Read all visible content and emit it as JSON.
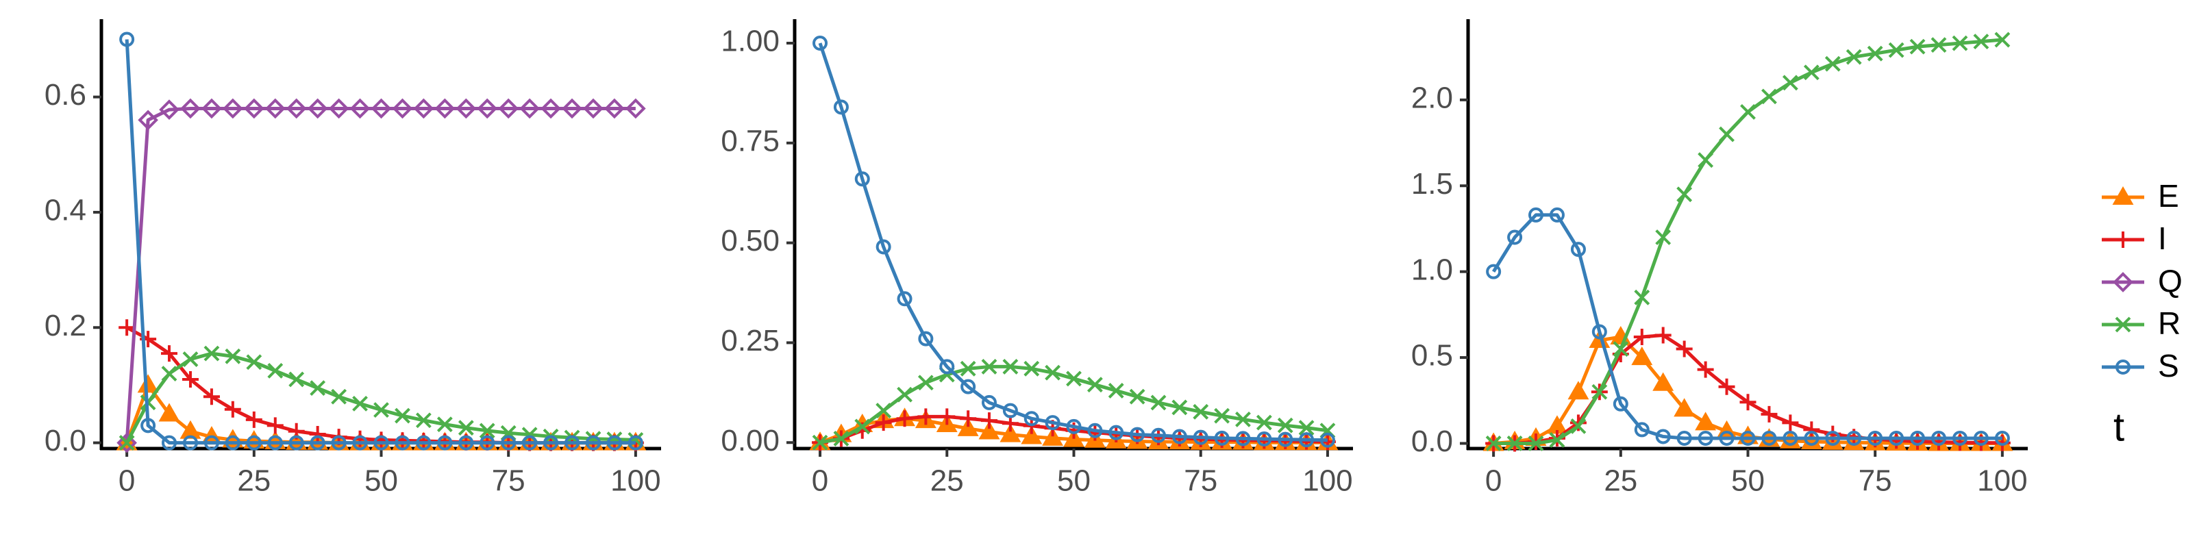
{
  "chart_data": [
    {
      "type": "line",
      "x": [
        0,
        4.17,
        8.33,
        12.5,
        16.67,
        20.83,
        25,
        29.17,
        33.33,
        37.5,
        41.67,
        45.83,
        50,
        54.17,
        58.33,
        62.5,
        66.67,
        70.83,
        75,
        79.17,
        83.33,
        87.5,
        91.67,
        95.83,
        100
      ],
      "xlim": [
        -5,
        105
      ],
      "xticks": [
        0,
        25,
        50,
        75,
        100
      ],
      "ylim": [
        -0.01,
        0.735
      ],
      "yticks": [
        {
          "value": 0,
          "label": "0.0"
        },
        0.2,
        0.4,
        0.6
      ],
      "series": [
        {
          "name": "E",
          "color": "#ff7f00",
          "marker": "triangle",
          "values": [
            0,
            0.1,
            0.05,
            0.02,
            0.01,
            0.005,
            0.003,
            0.002,
            0.001,
            0.001,
            0,
            0,
            0,
            0,
            0,
            0,
            0,
            0,
            0,
            0,
            0,
            0,
            0,
            0,
            0
          ]
        },
        {
          "name": "I",
          "color": "#e41a1c",
          "marker": "plus",
          "values": [
            0.2,
            0.18,
            0.155,
            0.11,
            0.08,
            0.058,
            0.04,
            0.03,
            0.02,
            0.015,
            0.01,
            0.007,
            0.005,
            0.004,
            0.003,
            0.002,
            0.001,
            0.001,
            0,
            0,
            0,
            0,
            0,
            0,
            0
          ]
        },
        {
          "name": "Q",
          "color": "#984ea3",
          "marker": "diamond",
          "values": [
            0,
            0.56,
            0.578,
            0.58,
            0.58,
            0.58,
            0.58,
            0.58,
            0.58,
            0.58,
            0.58,
            0.58,
            0.58,
            0.58,
            0.58,
            0.58,
            0.58,
            0.58,
            0.58,
            0.58,
            0.58,
            0.58,
            0.58,
            0.58,
            0.58
          ]
        },
        {
          "name": "R",
          "color": "#4daf4a",
          "marker": "cross",
          "values": [
            0,
            0.07,
            0.12,
            0.145,
            0.155,
            0.15,
            0.14,
            0.125,
            0.11,
            0.095,
            0.08,
            0.068,
            0.057,
            0.047,
            0.039,
            0.032,
            0.026,
            0.021,
            0.017,
            0.014,
            0.011,
            0.009,
            0.007,
            0.006,
            0.005
          ]
        },
        {
          "name": "S",
          "color": "#377eb8",
          "marker": "circle",
          "values": [
            0.7,
            0.03,
            0,
            0,
            0,
            0,
            0,
            0,
            0,
            0,
            0,
            0,
            0,
            0,
            0,
            0,
            0,
            0,
            0,
            0,
            0,
            0,
            0,
            0,
            0
          ]
        }
      ]
    },
    {
      "type": "line",
      "x": [
        0,
        4.17,
        8.33,
        12.5,
        16.67,
        20.83,
        25,
        29.17,
        33.33,
        37.5,
        41.67,
        45.83,
        50,
        54.17,
        58.33,
        62.5,
        66.67,
        70.83,
        75,
        79.17,
        83.33,
        87.5,
        91.67,
        95.83,
        100
      ],
      "xlim": [
        -5,
        105
      ],
      "xticks": [
        0,
        25,
        50,
        75,
        100
      ],
      "ylim": [
        -0.015,
        1.06
      ],
      "yticks": [
        {
          "value": 0,
          "label": "0.00"
        },
        0.25,
        {
          "value": 0.5,
          "label": "0.50"
        },
        0.75,
        {
          "value": 1,
          "label": "1.00"
        }
      ],
      "series": [
        {
          "name": "E",
          "color": "#ff7f00",
          "marker": "triangle",
          "values": [
            0,
            0.02,
            0.045,
            0.055,
            0.06,
            0.055,
            0.045,
            0.035,
            0.027,
            0.02,
            0.015,
            0.011,
            0.008,
            0.006,
            0.004,
            0.003,
            0.002,
            0.002,
            0.001,
            0.001,
            0.001,
            0,
            0,
            0,
            0
          ]
        },
        {
          "name": "I",
          "color": "#e41a1c",
          "marker": "plus",
          "values": [
            0,
            0.01,
            0.03,
            0.05,
            0.06,
            0.065,
            0.065,
            0.06,
            0.055,
            0.048,
            0.042,
            0.036,
            0.03,
            0.025,
            0.021,
            0.017,
            0.014,
            0.011,
            0.009,
            0.007,
            0.006,
            0.005,
            0.004,
            0.003,
            0.002
          ]
        },
        {
          "name": "R",
          "color": "#4daf4a",
          "marker": "cross",
          "values": [
            0,
            0.01,
            0.04,
            0.08,
            0.12,
            0.15,
            0.17,
            0.185,
            0.19,
            0.19,
            0.185,
            0.175,
            0.16,
            0.145,
            0.13,
            0.115,
            0.1,
            0.088,
            0.077,
            0.067,
            0.058,
            0.05,
            0.043,
            0.037,
            0.03
          ]
        },
        {
          "name": "S",
          "color": "#377eb8",
          "marker": "circle",
          "values": [
            1,
            0.84,
            0.66,
            0.49,
            0.36,
            0.26,
            0.19,
            0.14,
            0.1,
            0.08,
            0.06,
            0.05,
            0.04,
            0.03,
            0.025,
            0.02,
            0.018,
            0.015,
            0.013,
            0.011,
            0.01,
            0.009,
            0.008,
            0.007,
            0.006
          ]
        }
      ]
    },
    {
      "type": "line",
      "x": [
        0,
        4.17,
        8.33,
        12.5,
        16.67,
        20.83,
        25,
        29.17,
        33.33,
        37.5,
        41.67,
        45.83,
        50,
        54.17,
        58.33,
        62.5,
        66.67,
        70.83,
        75,
        79.17,
        83.33,
        87.5,
        91.67,
        95.83,
        100
      ],
      "xlim": [
        -5,
        105
      ],
      "xticks": [
        0,
        25,
        50,
        75,
        100
      ],
      "ylim": [
        -0.03,
        2.47
      ],
      "yticks": [
        {
          "value": 0,
          "label": "0.0"
        },
        0.5,
        {
          "value": 1,
          "label": "1.0"
        },
        1.5,
        {
          "value": 2,
          "label": "2.0"
        }
      ],
      "series": [
        {
          "name": "E",
          "color": "#ff7f00",
          "marker": "triangle",
          "values": [
            0,
            0.01,
            0.03,
            0.1,
            0.3,
            0.6,
            0.62,
            0.5,
            0.35,
            0.2,
            0.12,
            0.07,
            0.04,
            0.025,
            0.015,
            0.01,
            0.007,
            0.005,
            0.003,
            0.002,
            0.001,
            0,
            0,
            0,
            0
          ]
        },
        {
          "name": "I",
          "color": "#e41a1c",
          "marker": "plus",
          "values": [
            0,
            0,
            0.01,
            0.03,
            0.12,
            0.3,
            0.52,
            0.62,
            0.63,
            0.55,
            0.43,
            0.33,
            0.24,
            0.17,
            0.12,
            0.08,
            0.055,
            0.037,
            0.025,
            0.017,
            0.011,
            0.008,
            0.005,
            0.004,
            0.003
          ]
        },
        {
          "name": "R",
          "color": "#4daf4a",
          "marker": "cross",
          "values": [
            0,
            0,
            0,
            0.02,
            0.1,
            0.3,
            0.55,
            0.85,
            1.2,
            1.45,
            1.65,
            1.8,
            1.93,
            2.02,
            2.1,
            2.16,
            2.21,
            2.25,
            2.27,
            2.29,
            2.31,
            2.32,
            2.33,
            2.34,
            2.35
          ]
        },
        {
          "name": "S",
          "color": "#377eb8",
          "marker": "circle",
          "values": [
            1,
            1.2,
            1.33,
            1.33,
            1.13,
            0.65,
            0.23,
            0.08,
            0.04,
            0.03,
            0.03,
            0.03,
            0.03,
            0.03,
            0.03,
            0.03,
            0.03,
            0.03,
            0.03,
            0.03,
            0.03,
            0.03,
            0.03,
            0.03,
            0.03
          ]
        }
      ]
    }
  ],
  "legend": {
    "position": "right",
    "title": "t"
  }
}
